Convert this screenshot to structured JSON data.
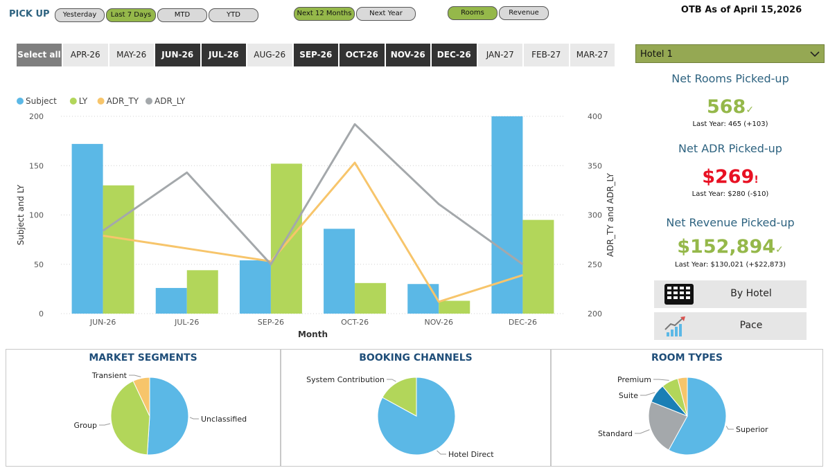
{
  "header": {
    "pickup_label": "PICK UP",
    "period_buttons": [
      {
        "label": "Yesterday",
        "active": false
      },
      {
        "label": "Last 7 Days",
        "active": true
      },
      {
        "label": "MTD",
        "active": false
      },
      {
        "label": "YTD",
        "active": false
      }
    ],
    "horizon_buttons": [
      {
        "label": "Next 12 Months",
        "active": true
      },
      {
        "label": "Next Year",
        "active": false
      }
    ],
    "metric_buttons": [
      {
        "label": "Rooms",
        "active": true
      },
      {
        "label": "Revenue",
        "active": false
      }
    ],
    "otb_label": "OTB As of April 15,2026"
  },
  "months": {
    "select_all": "Select all",
    "items": [
      {
        "label": "APR-26",
        "selected": false
      },
      {
        "label": "MAY-26",
        "selected": false
      },
      {
        "label": "JUN-26",
        "selected": true
      },
      {
        "label": "JUL-26",
        "selected": true
      },
      {
        "label": "AUG-26",
        "selected": false
      },
      {
        "label": "SEP-26",
        "selected": true
      },
      {
        "label": "OCT-26",
        "selected": true
      },
      {
        "label": "NOV-26",
        "selected": true
      },
      {
        "label": "DEC-26",
        "selected": true
      },
      {
        "label": "JAN-27",
        "selected": false
      },
      {
        "label": "FEB-27",
        "selected": false
      },
      {
        "label": "MAR-27",
        "selected": false
      }
    ]
  },
  "hotel_select": {
    "value": "Hotel 1"
  },
  "kpis": {
    "rooms": {
      "title": "Net Rooms Picked-up",
      "value": "568",
      "mark": "✓",
      "ly": "Last Year: 465 (+103)",
      "color": "#95b84a"
    },
    "adr": {
      "title": "Net ADR Picked-up",
      "value": "$269",
      "mark": "!",
      "ly": "Last Year: $280 (-$10)",
      "color": "#e81123"
    },
    "revenue": {
      "title": "Net Revenue Picked-up",
      "value": "$152,894",
      "mark": "✓",
      "ly": "Last Year: $130,021 (+$22,873)",
      "color": "#95b84a"
    }
  },
  "nav_buttons": {
    "by_hotel": {
      "label": "By Hotel",
      "icon": "grid-table-icon"
    },
    "pace": {
      "label": "Pace",
      "icon": "growth-chart-icon"
    }
  },
  "chart_data": [
    {
      "type": "bar",
      "legend": [
        "Subject",
        "LY",
        "ADR_TY",
        "ADR_LY"
      ],
      "legend_position": "top-left",
      "xlabel": "Month",
      "ylabel": "Subject and LY",
      "y2label": "ADR_TY and ADR_LY",
      "categories": [
        "JUN-26",
        "JUL-26",
        "SEP-26",
        "OCT-26",
        "NOV-26",
        "DEC-26"
      ],
      "ylim": [
        0,
        200
      ],
      "yticks": [
        0,
        50,
        100,
        150,
        200
      ],
      "y2lim": [
        200,
        400
      ],
      "y2ticks": [
        200,
        250,
        300,
        350,
        400
      ],
      "series": [
        {
          "name": "Subject",
          "kind": "bar",
          "axis": "left",
          "color": "#5bb8e6",
          "values": [
            172,
            26,
            54,
            86,
            30,
            200
          ]
        },
        {
          "name": "LY",
          "kind": "bar",
          "axis": "left",
          "color": "#b2d65a",
          "values": [
            130,
            44,
            152,
            31,
            13,
            95
          ]
        },
        {
          "name": "ADR_TY",
          "kind": "line",
          "axis": "right",
          "color": "#f7c56b",
          "values": [
            279,
            266,
            253,
            353,
            212,
            239
          ]
        },
        {
          "name": "ADR_LY",
          "kind": "line",
          "axis": "right",
          "color": "#a4a8ab",
          "values": [
            284,
            343,
            250,
            392,
            311,
            250
          ]
        }
      ]
    },
    {
      "type": "pie",
      "title": "MARKET SEGMENTS",
      "slices": [
        {
          "label": "Unclassified",
          "value": 51,
          "color": "#5bb8e6"
        },
        {
          "label": "Group",
          "value": 42,
          "color": "#b2d65a"
        },
        {
          "label": "Transient",
          "value": 7,
          "color": "#f7c56b"
        }
      ]
    },
    {
      "type": "pie",
      "title": "BOOKING CHANNELS",
      "slices": [
        {
          "label": "Hotel Direct",
          "value": 83,
          "color": "#5bb8e6"
        },
        {
          "label": "System Contribution",
          "value": 17,
          "color": "#b2d65a"
        }
      ]
    },
    {
      "type": "pie",
      "title": "ROOM TYPES",
      "slices": [
        {
          "label": "Superior",
          "value": 58,
          "color": "#5bb8e6"
        },
        {
          "label": "Standard",
          "value": 23,
          "color": "#a4a8ab"
        },
        {
          "label": "Suite",
          "value": 8,
          "color": "#1a7fb5"
        },
        {
          "label": "Premium",
          "value": 7,
          "color": "#b2d65a"
        },
        {
          "label": "",
          "value": 4,
          "color": "#f7c56b"
        }
      ]
    }
  ]
}
